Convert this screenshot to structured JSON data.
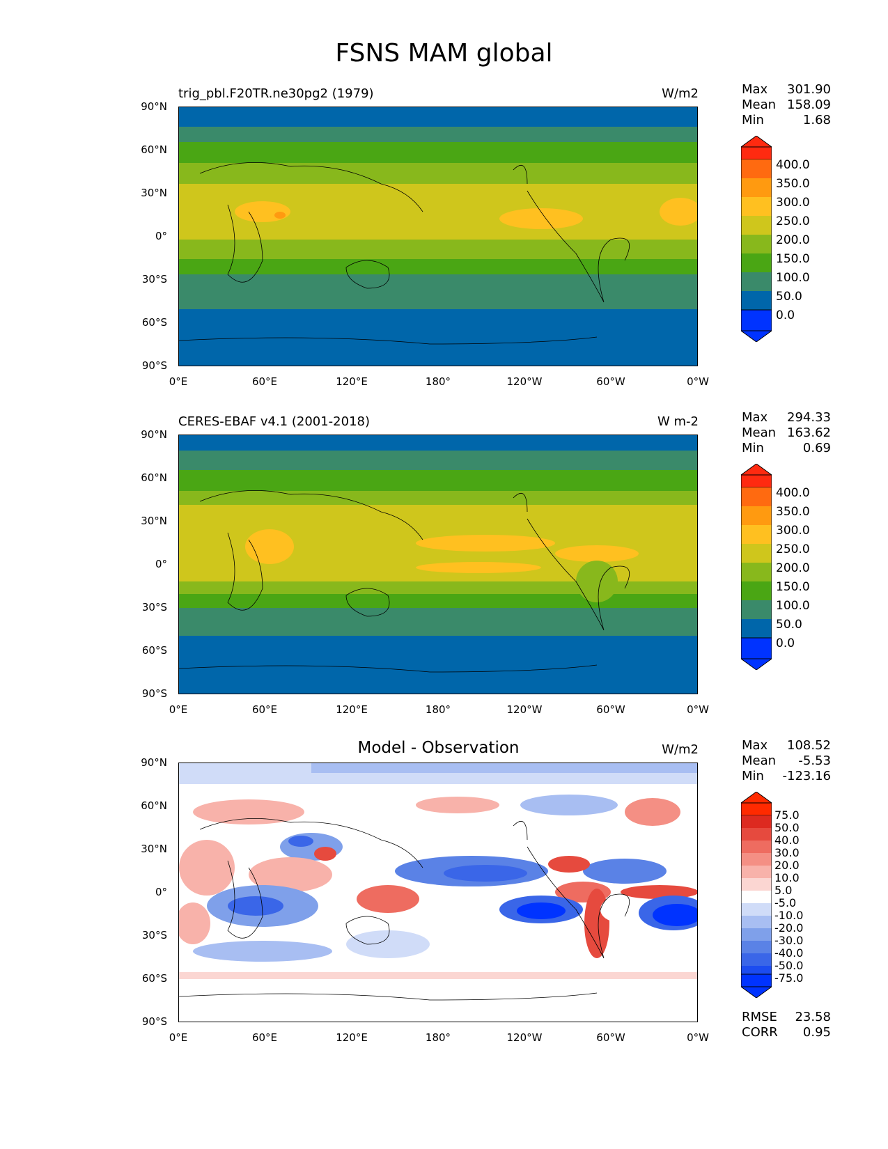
{
  "figure": {
    "title": "FSNS MAM global"
  },
  "axes": {
    "lat_ticks": [
      "90°N",
      "60°N",
      "30°N",
      "0°",
      "30°S",
      "60°S",
      "90°S"
    ],
    "lon_ticks": [
      "0°E",
      "60°E",
      "120°E",
      "180°",
      "120°W",
      "60°W",
      "0°W"
    ]
  },
  "panels": [
    {
      "title": "trig_pbl.F20TR.ne30pg2 (1979)",
      "units": "W/m2",
      "stats": {
        "max_label": "Max",
        "max": "301.90",
        "mean_label": "Mean",
        "mean": "158.09",
        "min_label": "Min",
        "min": "1.68"
      },
      "colorbar_labels": [
        "400.0",
        "350.0",
        "300.0",
        "250.0",
        "200.0",
        "150.0",
        "100.0",
        "50.0",
        "0.0"
      ]
    },
    {
      "title": "CERES-EBAF v4.1 (2001-2018)",
      "units": "W m-2",
      "stats": {
        "max_label": "Max",
        "max": "294.33",
        "mean_label": "Mean",
        "mean": "163.62",
        "min_label": "Min",
        "min": "0.69"
      },
      "colorbar_labels": [
        "400.0",
        "350.0",
        "300.0",
        "250.0",
        "200.0",
        "150.0",
        "100.0",
        "50.0",
        "0.0"
      ]
    },
    {
      "title": "Model - Observation",
      "units": "W/m2",
      "stats": {
        "max_label": "Max",
        "max": "108.52",
        "mean_label": "Mean",
        "mean": "-5.53",
        "min_label": "Min",
        "min": "-123.16"
      },
      "colorbar_labels": [
        "75.0",
        "50.0",
        "40.0",
        "30.0",
        "20.0",
        "10.0",
        "5.0",
        "-5.0",
        "-10.0",
        "-20.0",
        "-30.0",
        "-40.0",
        "-50.0",
        "-75.0"
      ],
      "metrics": {
        "rmse_label": "RMSE",
        "rmse": "23.58",
        "corr_label": "CORR",
        "corr": "0.95"
      }
    }
  ],
  "colors": {
    "abs_scale": [
      "#0033ff",
      "#0066aa",
      "#3a8a6a",
      "#4aa614",
      "#88b81c",
      "#cfc61c",
      "#ffc020",
      "#ff9a10",
      "#ff6a10",
      "#ff2a10"
    ],
    "diff_scale": [
      "#0033ff",
      "#1c4cf0",
      "#3a66e8",
      "#5a82e6",
      "#7fa0ea",
      "#a8bef2",
      "#d0dcf8",
      "#ffffff",
      "#fbd6d2",
      "#f8b2aa",
      "#f48f84",
      "#ee6c60",
      "#e64a3e",
      "#dd2a20",
      "#ff2a00"
    ],
    "coast": "#000000"
  }
}
